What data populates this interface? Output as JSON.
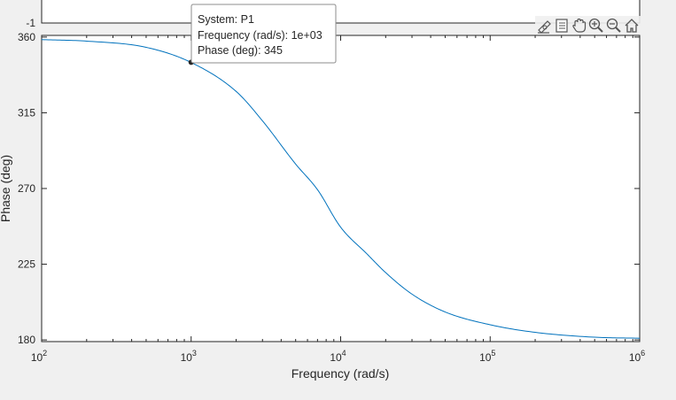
{
  "toolbar": {
    "icons": [
      "edit-data-icon",
      "legend-icon",
      "pan-hand-icon",
      "zoom-in-icon",
      "zoom-out-icon",
      "home-icon"
    ]
  },
  "top_plot": {
    "visible_tick_label": "-1"
  },
  "datatip": {
    "line1": "System: P1",
    "line2": "Frequency (rad/s): 1e+03",
    "line3": "Phase (deg): 345",
    "x": 1000,
    "y": 345
  },
  "chart_data": {
    "type": "line",
    "xscale": "log",
    "xlim": [
      100,
      1000000
    ],
    "ylim": [
      179,
      361
    ],
    "xlabel": "Frequency  (rad/s)",
    "ylabel": "Phase (deg)",
    "x_ticks": [
      100,
      1000,
      10000,
      100000,
      1000000
    ],
    "x_tick_labels": [
      {
        "base": "10",
        "exp": "2"
      },
      {
        "base": "10",
        "exp": "3"
      },
      {
        "base": "10",
        "exp": "4"
      },
      {
        "base": "10",
        "exp": "5"
      },
      {
        "base": "10",
        "exp": "6"
      }
    ],
    "y_ticks": [
      180,
      225,
      270,
      315,
      360
    ],
    "y_tick_labels": [
      "180",
      "225",
      "270",
      "315",
      "360"
    ],
    "grid": false,
    "series": [
      {
        "color": "#0072bd",
        "x": [
          100,
          200,
          500,
          1000,
          2000,
          3000,
          5000,
          7000,
          10000,
          15000,
          20000,
          30000,
          50000,
          100000,
          200000,
          500000,
          1000000
        ],
        "y": [
          358.5,
          357.6,
          353.9,
          344.9,
          327.7,
          310.2,
          284.5,
          269.3,
          247.0,
          231.1,
          220.0,
          207.2,
          196.6,
          189.0,
          184.5,
          181.6,
          181.0
        ]
      }
    ]
  }
}
